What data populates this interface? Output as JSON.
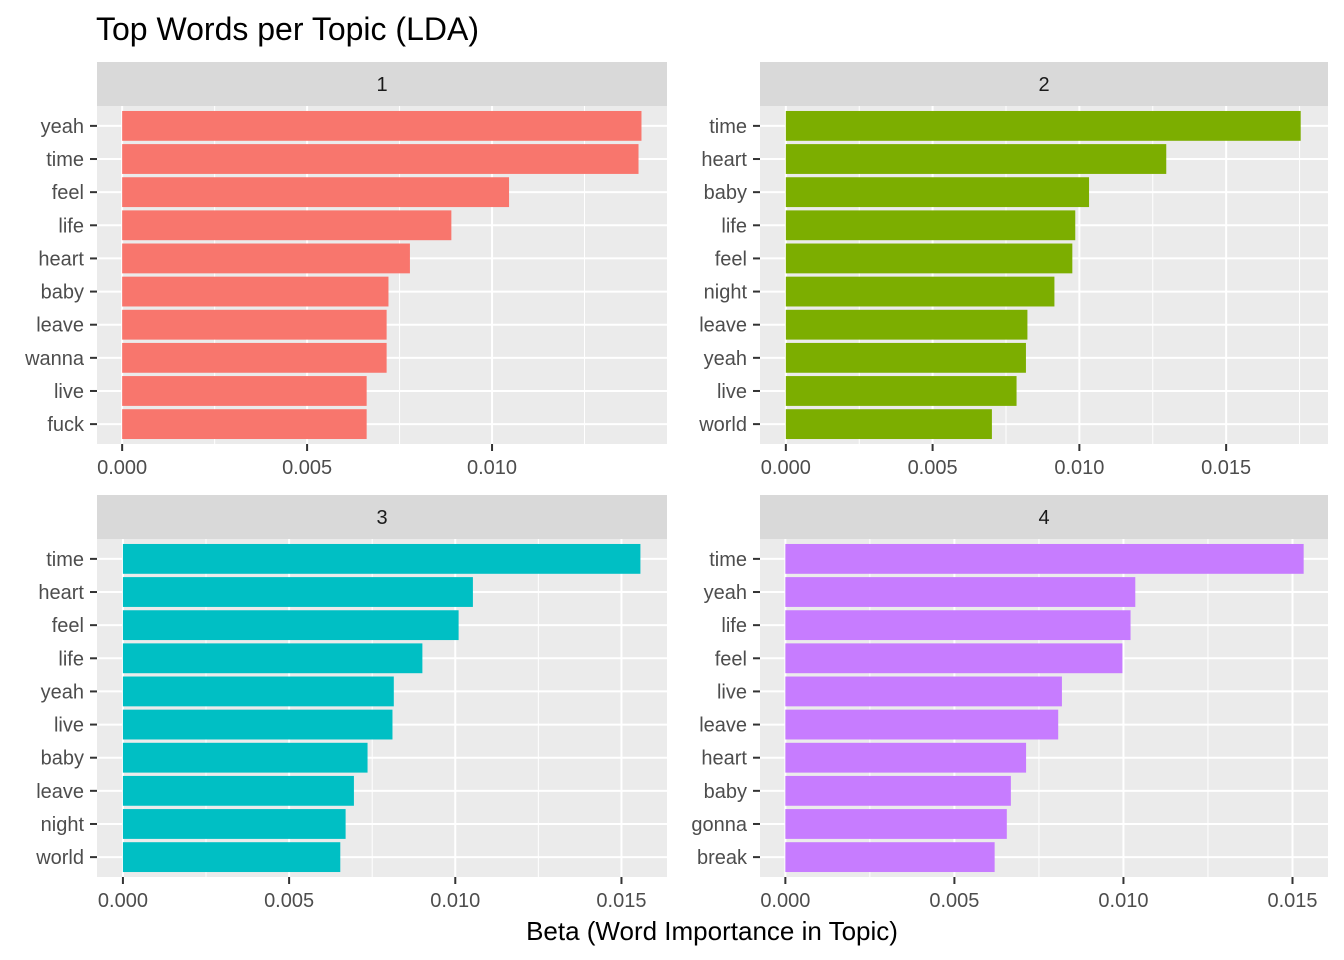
{
  "chart_data": {
    "type": "bar",
    "title": "Top Words per Topic (LDA)",
    "xlabel": "Beta (Word Importance in Topic)",
    "ylabel": "",
    "orientation": "horizontal",
    "facets": [
      {
        "label": "1",
        "color": "#F8766D",
        "xlim": [
          -0.00068,
          0.01473
        ],
        "xticks": [
          0.0,
          0.005,
          0.01
        ],
        "xtick_labels": [
          "0.000",
          "0.005",
          "0.010"
        ],
        "categories": [
          "yeah",
          "time",
          "feel",
          "life",
          "heart",
          "baby",
          "leave",
          "wanna",
          "live",
          "fuck"
        ],
        "values": [
          0.01404,
          0.01396,
          0.01046,
          0.0089,
          0.00778,
          0.0072,
          0.00715,
          0.00715,
          0.00661,
          0.00661
        ]
      },
      {
        "label": "2",
        "color": "#7CAE00",
        "xlim": [
          -0.00088,
          0.01847
        ],
        "xticks": [
          0.0,
          0.005,
          0.01,
          0.015
        ],
        "xtick_labels": [
          "0.000",
          "0.005",
          "0.010",
          "0.015"
        ],
        "categories": [
          "time",
          "heart",
          "baby",
          "life",
          "feel",
          "night",
          "leave",
          "yeah",
          "live",
          "world"
        ],
        "values": [
          0.01754,
          0.01296,
          0.01033,
          0.00986,
          0.00976,
          0.00915,
          0.00823,
          0.00818,
          0.00786,
          0.00702
        ]
      },
      {
        "label": "3",
        "color": "#00BFC4",
        "xlim": [
          -0.00078,
          0.01637
        ],
        "xticks": [
          0.0,
          0.005,
          0.01,
          0.015
        ],
        "xtick_labels": [
          "0.000",
          "0.005",
          "0.010",
          "0.015"
        ],
        "categories": [
          "time",
          "heart",
          "feel",
          "life",
          "yeah",
          "live",
          "baby",
          "leave",
          "night",
          "world"
        ],
        "values": [
          0.01557,
          0.01053,
          0.0101,
          0.00901,
          0.00815,
          0.00811,
          0.00736,
          0.00695,
          0.0067,
          0.00654
        ]
      },
      {
        "label": "4",
        "color": "#C77CFF",
        "xlim": [
          -0.00075,
          0.01605
        ],
        "xticks": [
          0.0,
          0.005,
          0.01,
          0.015
        ],
        "xtick_labels": [
          "0.000",
          "0.005",
          "0.010",
          "0.015"
        ],
        "categories": [
          "time",
          "yeah",
          "life",
          "feel",
          "live",
          "leave",
          "heart",
          "baby",
          "gonna",
          "break"
        ],
        "values": [
          0.01533,
          0.01035,
          0.01021,
          0.00997,
          0.00818,
          0.00807,
          0.00712,
          0.00667,
          0.00655,
          0.00619
        ]
      }
    ],
    "grid": true,
    "legend": "none"
  }
}
